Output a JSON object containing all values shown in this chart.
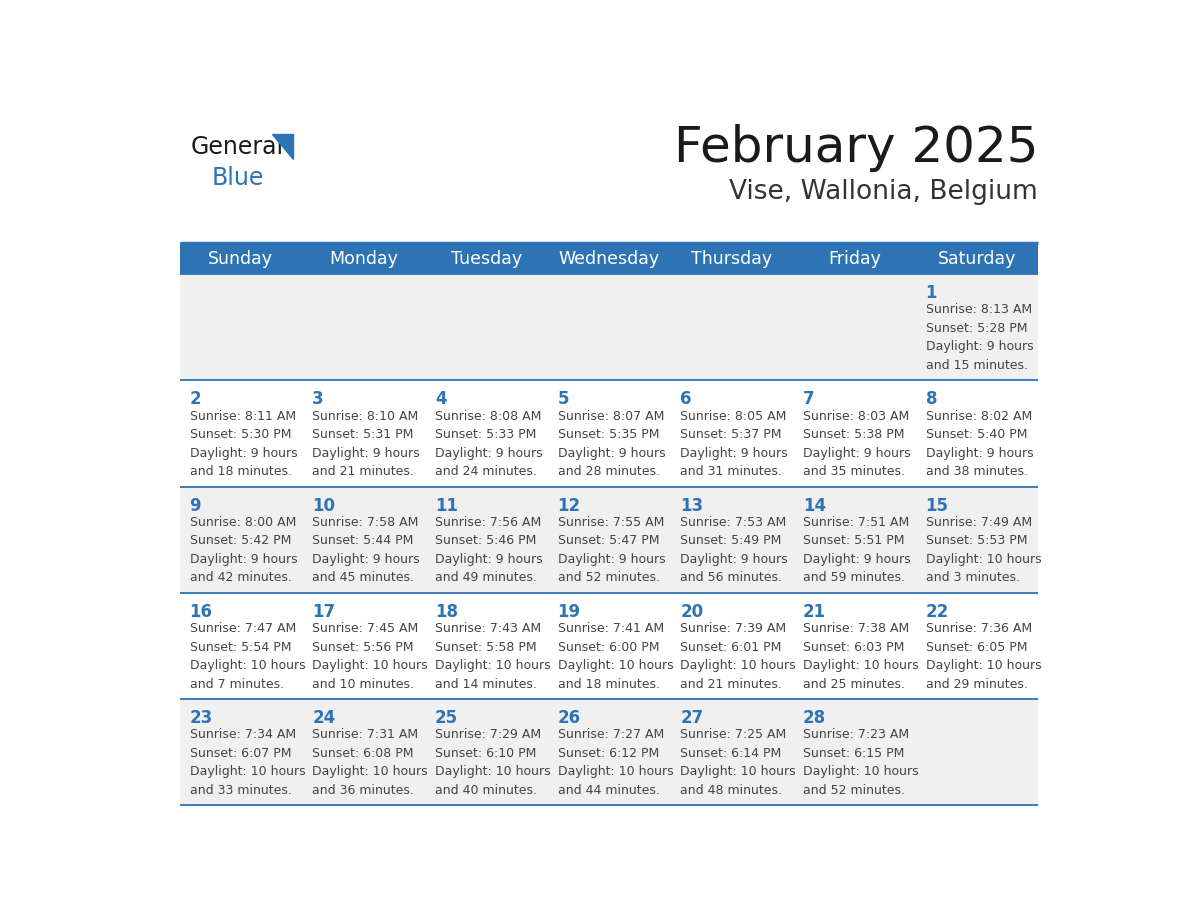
{
  "title": "February 2025",
  "subtitle": "Vise, Wallonia, Belgium",
  "days_of_week": [
    "Sunday",
    "Monday",
    "Tuesday",
    "Wednesday",
    "Thursday",
    "Friday",
    "Saturday"
  ],
  "header_bg": "#2E74B5",
  "header_text_color": "#FFFFFF",
  "cell_bg_light": "#F0F0F0",
  "cell_bg_white": "#FFFFFF",
  "separator_color": "#2E74B5",
  "day_number_color": "#2E74B5",
  "text_color": "#444444",
  "logo_general_color": "#1a1a1a",
  "logo_blue_color": "#2E74B5",
  "calendar_data": [
    [
      {
        "day": null,
        "info": null
      },
      {
        "day": null,
        "info": null
      },
      {
        "day": null,
        "info": null
      },
      {
        "day": null,
        "info": null
      },
      {
        "day": null,
        "info": null
      },
      {
        "day": null,
        "info": null
      },
      {
        "day": 1,
        "info": "Sunrise: 8:13 AM\nSunset: 5:28 PM\nDaylight: 9 hours\nand 15 minutes."
      }
    ],
    [
      {
        "day": 2,
        "info": "Sunrise: 8:11 AM\nSunset: 5:30 PM\nDaylight: 9 hours\nand 18 minutes."
      },
      {
        "day": 3,
        "info": "Sunrise: 8:10 AM\nSunset: 5:31 PM\nDaylight: 9 hours\nand 21 minutes."
      },
      {
        "day": 4,
        "info": "Sunrise: 8:08 AM\nSunset: 5:33 PM\nDaylight: 9 hours\nand 24 minutes."
      },
      {
        "day": 5,
        "info": "Sunrise: 8:07 AM\nSunset: 5:35 PM\nDaylight: 9 hours\nand 28 minutes."
      },
      {
        "day": 6,
        "info": "Sunrise: 8:05 AM\nSunset: 5:37 PM\nDaylight: 9 hours\nand 31 minutes."
      },
      {
        "day": 7,
        "info": "Sunrise: 8:03 AM\nSunset: 5:38 PM\nDaylight: 9 hours\nand 35 minutes."
      },
      {
        "day": 8,
        "info": "Sunrise: 8:02 AM\nSunset: 5:40 PM\nDaylight: 9 hours\nand 38 minutes."
      }
    ],
    [
      {
        "day": 9,
        "info": "Sunrise: 8:00 AM\nSunset: 5:42 PM\nDaylight: 9 hours\nand 42 minutes."
      },
      {
        "day": 10,
        "info": "Sunrise: 7:58 AM\nSunset: 5:44 PM\nDaylight: 9 hours\nand 45 minutes."
      },
      {
        "day": 11,
        "info": "Sunrise: 7:56 AM\nSunset: 5:46 PM\nDaylight: 9 hours\nand 49 minutes."
      },
      {
        "day": 12,
        "info": "Sunrise: 7:55 AM\nSunset: 5:47 PM\nDaylight: 9 hours\nand 52 minutes."
      },
      {
        "day": 13,
        "info": "Sunrise: 7:53 AM\nSunset: 5:49 PM\nDaylight: 9 hours\nand 56 minutes."
      },
      {
        "day": 14,
        "info": "Sunrise: 7:51 AM\nSunset: 5:51 PM\nDaylight: 9 hours\nand 59 minutes."
      },
      {
        "day": 15,
        "info": "Sunrise: 7:49 AM\nSunset: 5:53 PM\nDaylight: 10 hours\nand 3 minutes."
      }
    ],
    [
      {
        "day": 16,
        "info": "Sunrise: 7:47 AM\nSunset: 5:54 PM\nDaylight: 10 hours\nand 7 minutes."
      },
      {
        "day": 17,
        "info": "Sunrise: 7:45 AM\nSunset: 5:56 PM\nDaylight: 10 hours\nand 10 minutes."
      },
      {
        "day": 18,
        "info": "Sunrise: 7:43 AM\nSunset: 5:58 PM\nDaylight: 10 hours\nand 14 minutes."
      },
      {
        "day": 19,
        "info": "Sunrise: 7:41 AM\nSunset: 6:00 PM\nDaylight: 10 hours\nand 18 minutes."
      },
      {
        "day": 20,
        "info": "Sunrise: 7:39 AM\nSunset: 6:01 PM\nDaylight: 10 hours\nand 21 minutes."
      },
      {
        "day": 21,
        "info": "Sunrise: 7:38 AM\nSunset: 6:03 PM\nDaylight: 10 hours\nand 25 minutes."
      },
      {
        "day": 22,
        "info": "Sunrise: 7:36 AM\nSunset: 6:05 PM\nDaylight: 10 hours\nand 29 minutes."
      }
    ],
    [
      {
        "day": 23,
        "info": "Sunrise: 7:34 AM\nSunset: 6:07 PM\nDaylight: 10 hours\nand 33 minutes."
      },
      {
        "day": 24,
        "info": "Sunrise: 7:31 AM\nSunset: 6:08 PM\nDaylight: 10 hours\nand 36 minutes."
      },
      {
        "day": 25,
        "info": "Sunrise: 7:29 AM\nSunset: 6:10 PM\nDaylight: 10 hours\nand 40 minutes."
      },
      {
        "day": 26,
        "info": "Sunrise: 7:27 AM\nSunset: 6:12 PM\nDaylight: 10 hours\nand 44 minutes."
      },
      {
        "day": 27,
        "info": "Sunrise: 7:25 AM\nSunset: 6:14 PM\nDaylight: 10 hours\nand 48 minutes."
      },
      {
        "day": 28,
        "info": "Sunrise: 7:23 AM\nSunset: 6:15 PM\nDaylight: 10 hours\nand 52 minutes."
      },
      {
        "day": null,
        "info": null
      }
    ]
  ]
}
